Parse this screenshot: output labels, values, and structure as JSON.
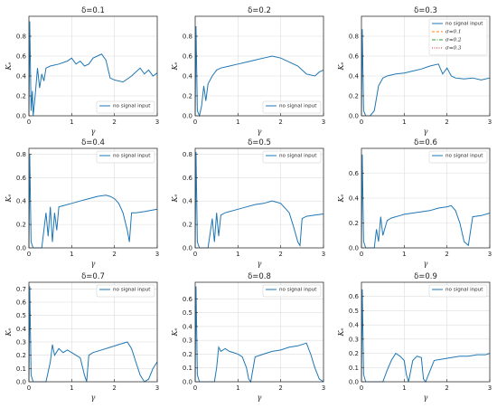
{
  "chart_data": [
    {
      "type": "line",
      "title": "δ=0.1",
      "xlabel": "γ",
      "ylabel": "Kₑ",
      "xlim": [
        0,
        3
      ],
      "ylim": [
        0,
        1.0
      ],
      "xticks": [
        "0",
        "1",
        "2",
        "3"
      ],
      "yticks": [
        "0.0",
        "0.2",
        "0.4",
        "0.6",
        "0.8"
      ],
      "grid": true,
      "legend": "lower-right",
      "series": [
        {
          "name": "no signal input",
          "color": "#1f77b4",
          "style": "solid",
          "x": [
            0,
            0.02,
            0.05,
            0.08,
            0.1,
            0.15,
            0.2,
            0.25,
            0.3,
            0.35,
            0.4,
            0.5,
            0.7,
            0.9,
            1.0,
            1.1,
            1.2,
            1.3,
            1.4,
            1.5,
            1.6,
            1.7,
            1.8,
            1.9,
            2.0,
            2.2,
            2.4,
            2.6,
            2.7,
            2.8,
            2.9,
            3.0
          ],
          "y": [
            0,
            0.95,
            0.05,
            0.25,
            0.0,
            0.22,
            0.48,
            0.28,
            0.42,
            0.35,
            0.48,
            0.5,
            0.52,
            0.55,
            0.58,
            0.52,
            0.55,
            0.5,
            0.52,
            0.58,
            0.6,
            0.62,
            0.56,
            0.38,
            0.36,
            0.34,
            0.4,
            0.48,
            0.42,
            0.46,
            0.4,
            0.43
          ]
        }
      ]
    },
    {
      "type": "line",
      "title": "δ=0.2",
      "xlabel": "γ",
      "ylabel": "Kₑ",
      "xlim": [
        0,
        3
      ],
      "ylim": [
        0,
        1.0
      ],
      "xticks": [
        "0",
        "1",
        "2",
        "3"
      ],
      "yticks": [
        "0.0",
        "0.2",
        "0.4",
        "0.6",
        "0.8"
      ],
      "grid": true,
      "legend": "lower-right",
      "series": [
        {
          "name": "no signal input",
          "color": "#1f77b4",
          "style": "solid",
          "x": [
            0,
            0.02,
            0.05,
            0.1,
            0.15,
            0.2,
            0.25,
            0.3,
            0.4,
            0.5,
            0.6,
            0.8,
            1.0,
            1.2,
            1.4,
            1.6,
            1.8,
            2.0,
            2.2,
            2.4,
            2.6,
            2.8,
            2.9,
            3.0
          ],
          "y": [
            0,
            0.9,
            0.05,
            0.0,
            0.1,
            0.3,
            0.15,
            0.32,
            0.4,
            0.46,
            0.48,
            0.5,
            0.52,
            0.54,
            0.56,
            0.58,
            0.6,
            0.58,
            0.54,
            0.5,
            0.42,
            0.4,
            0.44,
            0.46
          ]
        }
      ]
    },
    {
      "type": "line",
      "title": "δ=0.3",
      "xlabel": "γ",
      "ylabel": "Kₑ",
      "xlim": [
        0,
        3
      ],
      "ylim": [
        0,
        1.0
      ],
      "xticks": [
        "0",
        "1",
        "2",
        "3"
      ],
      "yticks": [
        "0.0",
        "0.2",
        "0.4",
        "0.6",
        "0.8"
      ],
      "grid": true,
      "legend": "upper-right",
      "series": [
        {
          "name": "no signal input",
          "color": "#1f77b4",
          "style": "solid",
          "x": [
            0,
            0.02,
            0.05,
            0.1,
            0.2,
            0.3,
            0.4,
            0.5,
            0.6,
            0.7,
            0.8,
            1.0,
            1.2,
            1.4,
            1.6,
            1.8,
            1.9,
            2.0,
            2.1,
            2.2,
            2.4,
            2.6,
            2.8,
            3.0
          ],
          "y": [
            0,
            0.87,
            0.05,
            0.0,
            0.0,
            0.05,
            0.3,
            0.38,
            0.4,
            0.41,
            0.42,
            0.43,
            0.45,
            0.47,
            0.5,
            0.52,
            0.42,
            0.48,
            0.4,
            0.38,
            0.37,
            0.38,
            0.36,
            0.38
          ]
        },
        {
          "name": "σ=0.1",
          "color": "#ff7f0e",
          "style": "dashed",
          "x": [],
          "y": []
        },
        {
          "name": "σ=0.2",
          "color": "#2ca02c",
          "style": "dashdot",
          "x": [],
          "y": []
        },
        {
          "name": "σ=0.3",
          "color": "#d62728",
          "style": "dotted",
          "x": [],
          "y": []
        }
      ]
    },
    {
      "type": "line",
      "title": "δ=0.4",
      "xlabel": "γ",
      "ylabel": "Kₑ",
      "xlim": [
        0,
        3
      ],
      "ylim": [
        0,
        0.85
      ],
      "xticks": [
        "0",
        "1",
        "2",
        "3"
      ],
      "yticks": [
        "0.0",
        "0.2",
        "0.4",
        "0.6",
        "0.8"
      ],
      "grid": true,
      "legend": "upper-right",
      "series": [
        {
          "name": "no signal input",
          "color": "#1f77b4",
          "style": "solid",
          "x": [
            0,
            0.02,
            0.05,
            0.1,
            0.3,
            0.4,
            0.45,
            0.5,
            0.55,
            0.6,
            0.65,
            0.7,
            0.8,
            1.0,
            1.2,
            1.4,
            1.6,
            1.8,
            1.9,
            2.0,
            2.1,
            2.2,
            2.3,
            2.35,
            2.4,
            2.5,
            2.7,
            3.0
          ],
          "y": [
            0,
            0.8,
            0.05,
            0.0,
            0.0,
            0.3,
            0.1,
            0.35,
            0.05,
            0.3,
            0.15,
            0.35,
            0.36,
            0.38,
            0.4,
            0.42,
            0.44,
            0.45,
            0.44,
            0.42,
            0.38,
            0.3,
            0.15,
            0.05,
            0.3,
            0.3,
            0.31,
            0.33
          ]
        }
      ]
    },
    {
      "type": "line",
      "title": "δ=0.5",
      "xlabel": "γ",
      "ylabel": "Kₑ",
      "xlim": [
        0,
        3
      ],
      "ylim": [
        0,
        0.85
      ],
      "xticks": [
        "0",
        "1",
        "2",
        "3"
      ],
      "yticks": [
        "0.0",
        "0.2",
        "0.4",
        "0.6",
        "0.8"
      ],
      "grid": true,
      "legend": "upper-right",
      "series": [
        {
          "name": "no signal input",
          "color": "#1f77b4",
          "style": "solid",
          "x": [
            0,
            0.02,
            0.05,
            0.1,
            0.3,
            0.4,
            0.45,
            0.5,
            0.55,
            0.6,
            0.7,
            0.8,
            1.0,
            1.2,
            1.4,
            1.6,
            1.8,
            2.0,
            2.2,
            2.3,
            2.4,
            2.45,
            2.5,
            2.6,
            2.8,
            3.0
          ],
          "y": [
            0,
            0.82,
            0.05,
            0.0,
            0.0,
            0.25,
            0.05,
            0.3,
            0.1,
            0.28,
            0.3,
            0.31,
            0.33,
            0.35,
            0.37,
            0.38,
            0.4,
            0.38,
            0.3,
            0.18,
            0.05,
            0.02,
            0.25,
            0.27,
            0.28,
            0.29
          ]
        }
      ]
    },
    {
      "type": "line",
      "title": "δ=0.6",
      "xlabel": "γ",
      "ylabel": "Kₑ",
      "xlim": [
        0,
        3
      ],
      "ylim": [
        0,
        0.8
      ],
      "xticks": [
        "0",
        "1",
        "2",
        "3"
      ],
      "yticks": [
        "0.0",
        "0.2",
        "0.4",
        "0.6"
      ],
      "grid": true,
      "legend": "upper-right",
      "series": [
        {
          "name": "no signal input",
          "color": "#1f77b4",
          "style": "solid",
          "x": [
            0,
            0.02,
            0.05,
            0.1,
            0.3,
            0.35,
            0.4,
            0.45,
            0.5,
            0.6,
            0.7,
            0.8,
            0.9,
            1.0,
            1.2,
            1.4,
            1.6,
            1.8,
            2.0,
            2.1,
            2.2,
            2.3,
            2.4,
            2.5,
            2.6,
            2.8,
            3.0
          ],
          "y": [
            0,
            0.75,
            0.05,
            0.0,
            0.0,
            0.15,
            0.05,
            0.25,
            0.1,
            0.22,
            0.24,
            0.25,
            0.26,
            0.27,
            0.28,
            0.29,
            0.3,
            0.32,
            0.33,
            0.34,
            0.3,
            0.2,
            0.05,
            0.02,
            0.25,
            0.26,
            0.28
          ]
        }
      ]
    },
    {
      "type": "line",
      "title": "δ=0.7",
      "xlabel": "γ",
      "ylabel": "Kₑ",
      "xlim": [
        0,
        3
      ],
      "ylim": [
        0,
        0.75
      ],
      "xticks": [
        "0",
        "1",
        "2",
        "3"
      ],
      "yticks": [
        "0.0",
        "0.1",
        "0.2",
        "0.3",
        "0.4",
        "0.5",
        "0.6",
        "0.7"
      ],
      "grid": true,
      "legend": "upper-right",
      "series": [
        {
          "name": "no signal input",
          "color": "#1f77b4",
          "style": "solid",
          "x": [
            0,
            0.02,
            0.05,
            0.1,
            0.4,
            0.5,
            0.55,
            0.6,
            0.7,
            0.8,
            0.9,
            1.0,
            1.1,
            1.2,
            1.3,
            1.35,
            1.4,
            1.5,
            1.7,
            1.9,
            2.1,
            2.3,
            2.4,
            2.5,
            2.6,
            2.7,
            2.8,
            2.9,
            3.0
          ],
          "y": [
            0,
            0.72,
            0.05,
            0.0,
            0.0,
            0.15,
            0.28,
            0.2,
            0.25,
            0.22,
            0.24,
            0.22,
            0.2,
            0.18,
            0.05,
            0.0,
            0.2,
            0.22,
            0.24,
            0.26,
            0.28,
            0.3,
            0.25,
            0.15,
            0.05,
            0.0,
            0.02,
            0.1,
            0.15
          ]
        }
      ]
    },
    {
      "type": "line",
      "title": "δ=0.8",
      "xlabel": "γ",
      "ylabel": "Kₑ",
      "xlim": [
        0,
        3
      ],
      "ylim": [
        0,
        0.72
      ],
      "xticks": [
        "0",
        "1",
        "2",
        "3"
      ],
      "yticks": [
        "0.0",
        "0.1",
        "0.2",
        "0.3",
        "0.4",
        "0.5",
        "0.6"
      ],
      "grid": true,
      "legend": "upper-right",
      "series": [
        {
          "name": "no signal input",
          "color": "#1f77b4",
          "style": "solid",
          "x": [
            0,
            0.02,
            0.05,
            0.1,
            0.45,
            0.5,
            0.55,
            0.6,
            0.7,
            0.8,
            0.9,
            1.0,
            1.1,
            1.2,
            1.25,
            1.3,
            1.4,
            1.6,
            1.8,
            2.0,
            2.2,
            2.4,
            2.6,
            2.7,
            2.8,
            2.9,
            3.0
          ],
          "y": [
            0,
            0.69,
            0.05,
            0.0,
            0.0,
            0.1,
            0.25,
            0.22,
            0.24,
            0.22,
            0.21,
            0.2,
            0.18,
            0.1,
            0.02,
            0.0,
            0.18,
            0.2,
            0.22,
            0.23,
            0.25,
            0.26,
            0.28,
            0.2,
            0.1,
            0.02,
            0.0
          ]
        }
      ]
    },
    {
      "type": "line",
      "title": "δ=0.9",
      "xlabel": "γ",
      "ylabel": "Kₑ",
      "xlim": [
        0,
        3
      ],
      "ylim": [
        0,
        0.7
      ],
      "xticks": [
        "0",
        "1",
        "2",
        "3"
      ],
      "yticks": [
        "0.0",
        "0.1",
        "0.2",
        "0.3",
        "0.4",
        "0.5",
        "0.6"
      ],
      "grid": true,
      "legend": "upper-right",
      "series": [
        {
          "name": "no signal input",
          "color": "#1f77b4",
          "style": "solid",
          "x": [
            0,
            0.02,
            0.05,
            0.1,
            0.5,
            0.6,
            0.7,
            0.8,
            0.9,
            1.0,
            1.05,
            1.1,
            1.2,
            1.3,
            1.4,
            1.45,
            1.5,
            1.7,
            1.9,
            2.1,
            2.3,
            2.5,
            2.7,
            2.9,
            3.0
          ],
          "y": [
            0,
            0.65,
            0.05,
            0.0,
            0.0,
            0.08,
            0.15,
            0.2,
            0.18,
            0.15,
            0.05,
            0.0,
            0.15,
            0.18,
            0.17,
            0.02,
            0.0,
            0.15,
            0.16,
            0.17,
            0.18,
            0.18,
            0.19,
            0.19,
            0.2
          ]
        }
      ]
    }
  ],
  "colors": {
    "no_signal": "#1f77b4",
    "sigma_01": "#ff7f0e",
    "sigma_02": "#2ca02c",
    "sigma_03": "#d62728",
    "grid": "#dddddd",
    "axis": "#333333"
  }
}
